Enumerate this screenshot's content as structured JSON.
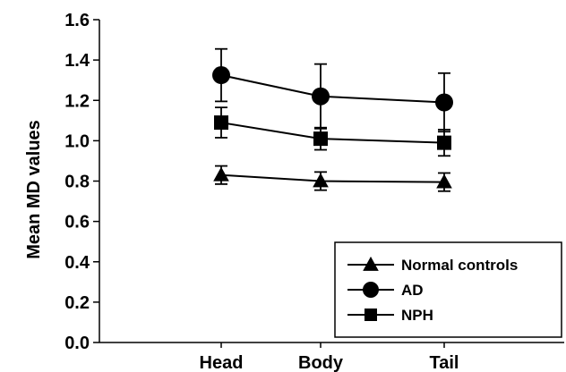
{
  "chart_data": {
    "type": "line",
    "title": "",
    "xlabel": "",
    "ylabel": "Mean MD values",
    "categories": [
      "Head",
      "Body",
      "Tail"
    ],
    "ylim": [
      0.0,
      1.6
    ],
    "yticks": [
      "0.0",
      "0.2",
      "0.4",
      "0.6",
      "0.8",
      "1.0",
      "1.2",
      "1.4",
      "1.6"
    ],
    "grid": false,
    "legend_position": "bottom-right",
    "series": [
      {
        "name": "Normal controls",
        "marker": "triangle",
        "values": [
          0.83,
          0.8,
          0.795
        ],
        "error": [
          0.045,
          0.045,
          0.045
        ]
      },
      {
        "name": "AD",
        "marker": "circle",
        "values": [
          1.325,
          1.22,
          1.19
        ],
        "error": [
          0.13,
          0.16,
          0.145
        ]
      },
      {
        "name": "NPH",
        "marker": "square",
        "values": [
          1.09,
          1.01,
          0.99
        ],
        "error": [
          0.075,
          0.055,
          0.065
        ]
      }
    ],
    "colors": {
      "line": "#000000",
      "background": "#ffffff"
    }
  }
}
